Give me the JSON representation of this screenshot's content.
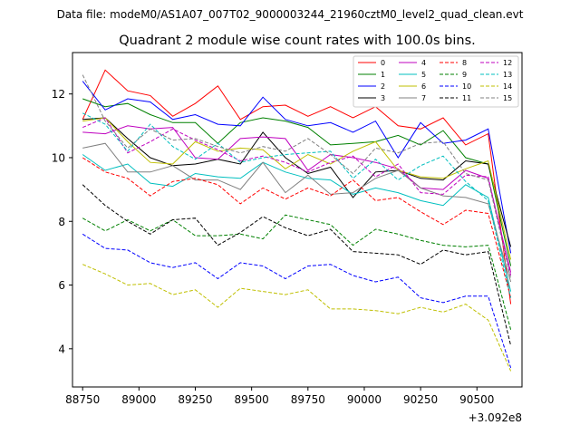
{
  "chart_data": {
    "type": "line",
    "header": "Data file: modeM0/AS1A07_007T02_9000003244_21960cztM0_level2_quad_clean.evt",
    "title": "Quadrant 2 module wise count rates with 100.0s bins.",
    "xlabel": "",
    "ylabel": "",
    "x_offset_label": "+3.092e8",
    "xlim": [
      88705,
      90700
    ],
    "ylim": [
      2.8,
      13.3
    ],
    "x_ticks": [
      88750,
      89000,
      89250,
      89500,
      89750,
      90000,
      90250,
      90500
    ],
    "y_ticks": [
      4,
      6,
      8,
      10,
      12
    ],
    "grid": false,
    "legend_position": "top-right",
    "x": [
      88750,
      88850,
      88950,
      89050,
      89150,
      89250,
      89350,
      89450,
      89550,
      89650,
      89750,
      89850,
      89950,
      90050,
      90150,
      90250,
      90350,
      90450,
      90550,
      90650
    ],
    "series": [
      {
        "name": "0",
        "color": "#ff0000",
        "dash": "solid",
        "values": [
          11.2,
          12.75,
          12.1,
          11.95,
          11.3,
          11.7,
          12.25,
          11.2,
          11.6,
          11.65,
          11.3,
          11.6,
          11.25,
          11.6,
          11.0,
          10.9,
          11.25,
          10.4,
          10.75,
          5.4
        ]
      },
      {
        "name": "1",
        "color": "#008000",
        "dash": "solid",
        "values": [
          11.85,
          11.6,
          11.7,
          11.35,
          11.1,
          11.1,
          10.45,
          11.1,
          11.25,
          11.15,
          10.95,
          10.4,
          10.45,
          10.5,
          10.7,
          10.4,
          10.85,
          10.0,
          9.8,
          6.6
        ]
      },
      {
        "name": "2",
        "color": "#0000ff",
        "dash": "solid",
        "values": [
          12.4,
          11.5,
          11.85,
          11.75,
          11.2,
          11.35,
          11.05,
          11.0,
          11.9,
          11.2,
          11.0,
          11.1,
          10.8,
          11.15,
          10.0,
          11.1,
          10.45,
          10.55,
          10.9,
          7.0
        ]
      },
      {
        "name": "3",
        "color": "#000000",
        "dash": "solid",
        "values": [
          11.2,
          11.25,
          10.6,
          10.0,
          9.75,
          9.8,
          9.95,
          9.8,
          10.8,
          10.0,
          9.5,
          9.7,
          8.75,
          9.55,
          9.6,
          9.35,
          9.3,
          9.9,
          9.8,
          7.2
        ]
      },
      {
        "name": "4",
        "color": "#bf00bf",
        "dash": "solid",
        "values": [
          10.8,
          10.75,
          11.0,
          10.9,
          10.95,
          10.0,
          9.95,
          10.6,
          10.65,
          10.6,
          9.6,
          10.1,
          10.0,
          9.85,
          9.65,
          9.05,
          9.0,
          9.6,
          9.35,
          6.4
        ]
      },
      {
        "name": "5",
        "color": "#00bfbf",
        "dash": "solid",
        "values": [
          10.1,
          9.6,
          9.8,
          9.2,
          9.1,
          9.5,
          9.4,
          9.35,
          9.85,
          9.55,
          9.35,
          9.3,
          8.85,
          9.05,
          8.9,
          8.65,
          8.5,
          9.15,
          8.75,
          5.8
        ]
      },
      {
        "name": "6",
        "color": "#bfbf00",
        "dash": "solid",
        "values": [
          11.15,
          11.25,
          10.5,
          9.85,
          9.8,
          10.5,
          10.2,
          10.3,
          10.25,
          9.65,
          10.1,
          9.8,
          10.2,
          10.5,
          9.6,
          9.4,
          9.35,
          9.65,
          9.9,
          6.8
        ]
      },
      {
        "name": "7",
        "color": "#808080",
        "dash": "solid",
        "values": [
          10.3,
          10.45,
          9.55,
          9.55,
          9.75,
          9.3,
          9.3,
          9.0,
          9.85,
          8.9,
          9.45,
          8.85,
          8.9,
          9.35,
          9.6,
          9.05,
          8.8,
          8.75,
          8.55,
          6.1
        ]
      },
      {
        "name": "8",
        "color": "#ff0000",
        "dash": "dashed",
        "values": [
          10.0,
          9.55,
          9.35,
          8.8,
          9.25,
          9.35,
          9.15,
          8.55,
          9.05,
          8.7,
          9.05,
          8.8,
          9.3,
          8.65,
          8.75,
          8.3,
          7.9,
          8.35,
          8.25,
          5.6
        ]
      },
      {
        "name": "9",
        "color": "#008000",
        "dash": "dashed",
        "values": [
          8.1,
          7.7,
          8.05,
          7.7,
          8.05,
          7.55,
          7.55,
          7.6,
          7.45,
          8.2,
          8.05,
          7.9,
          7.25,
          7.75,
          7.6,
          7.4,
          7.25,
          7.2,
          7.25,
          4.6
        ]
      },
      {
        "name": "10",
        "color": "#0000ff",
        "dash": "dashed",
        "values": [
          7.6,
          7.15,
          7.1,
          6.7,
          6.55,
          6.7,
          6.2,
          6.7,
          6.6,
          6.2,
          6.6,
          6.65,
          6.3,
          6.1,
          6.25,
          5.6,
          5.45,
          5.65,
          5.65,
          3.4
        ]
      },
      {
        "name": "11",
        "color": "#000000",
        "dash": "dashed",
        "values": [
          9.15,
          8.5,
          8.0,
          7.6,
          8.05,
          8.1,
          7.25,
          7.65,
          8.15,
          7.8,
          7.55,
          7.75,
          7.05,
          7.0,
          6.95,
          6.65,
          7.1,
          6.95,
          7.05,
          4.1
        ]
      },
      {
        "name": "12",
        "color": "#bf00bf",
        "dash": "dashed",
        "values": [
          10.95,
          11.25,
          10.15,
          10.5,
          10.9,
          10.55,
          10.25,
          9.9,
          10.05,
          9.85,
          9.55,
          9.85,
          10.05,
          9.4,
          9.8,
          8.9,
          8.85,
          9.45,
          9.4,
          6.3
        ]
      },
      {
        "name": "13",
        "color": "#00bfbf",
        "dash": "dashed",
        "values": [
          11.4,
          11.05,
          10.2,
          11.05,
          10.35,
          9.95,
          10.45,
          9.85,
          10.0,
          10.1,
          10.15,
          10.2,
          9.35,
          9.95,
          9.3,
          9.75,
          10.05,
          9.25,
          8.65,
          5.6
        ]
      },
      {
        "name": "14",
        "color": "#bfbf00",
        "dash": "dashed",
        "values": [
          6.65,
          6.35,
          6.0,
          6.05,
          5.7,
          5.85,
          5.3,
          5.9,
          5.8,
          5.7,
          5.85,
          5.25,
          5.25,
          5.2,
          5.1,
          5.3,
          5.15,
          5.4,
          4.9,
          3.3
        ]
      },
      {
        "name": "15",
        "color": "#808080",
        "dash": "dashed",
        "values": [
          12.6,
          11.15,
          10.3,
          10.9,
          10.55,
          10.6,
          10.35,
          10.15,
          10.35,
          10.2,
          10.6,
          10.1,
          9.5,
          10.3,
          10.15,
          10.45,
          10.5,
          9.5,
          9.3,
          6.2
        ]
      }
    ]
  }
}
